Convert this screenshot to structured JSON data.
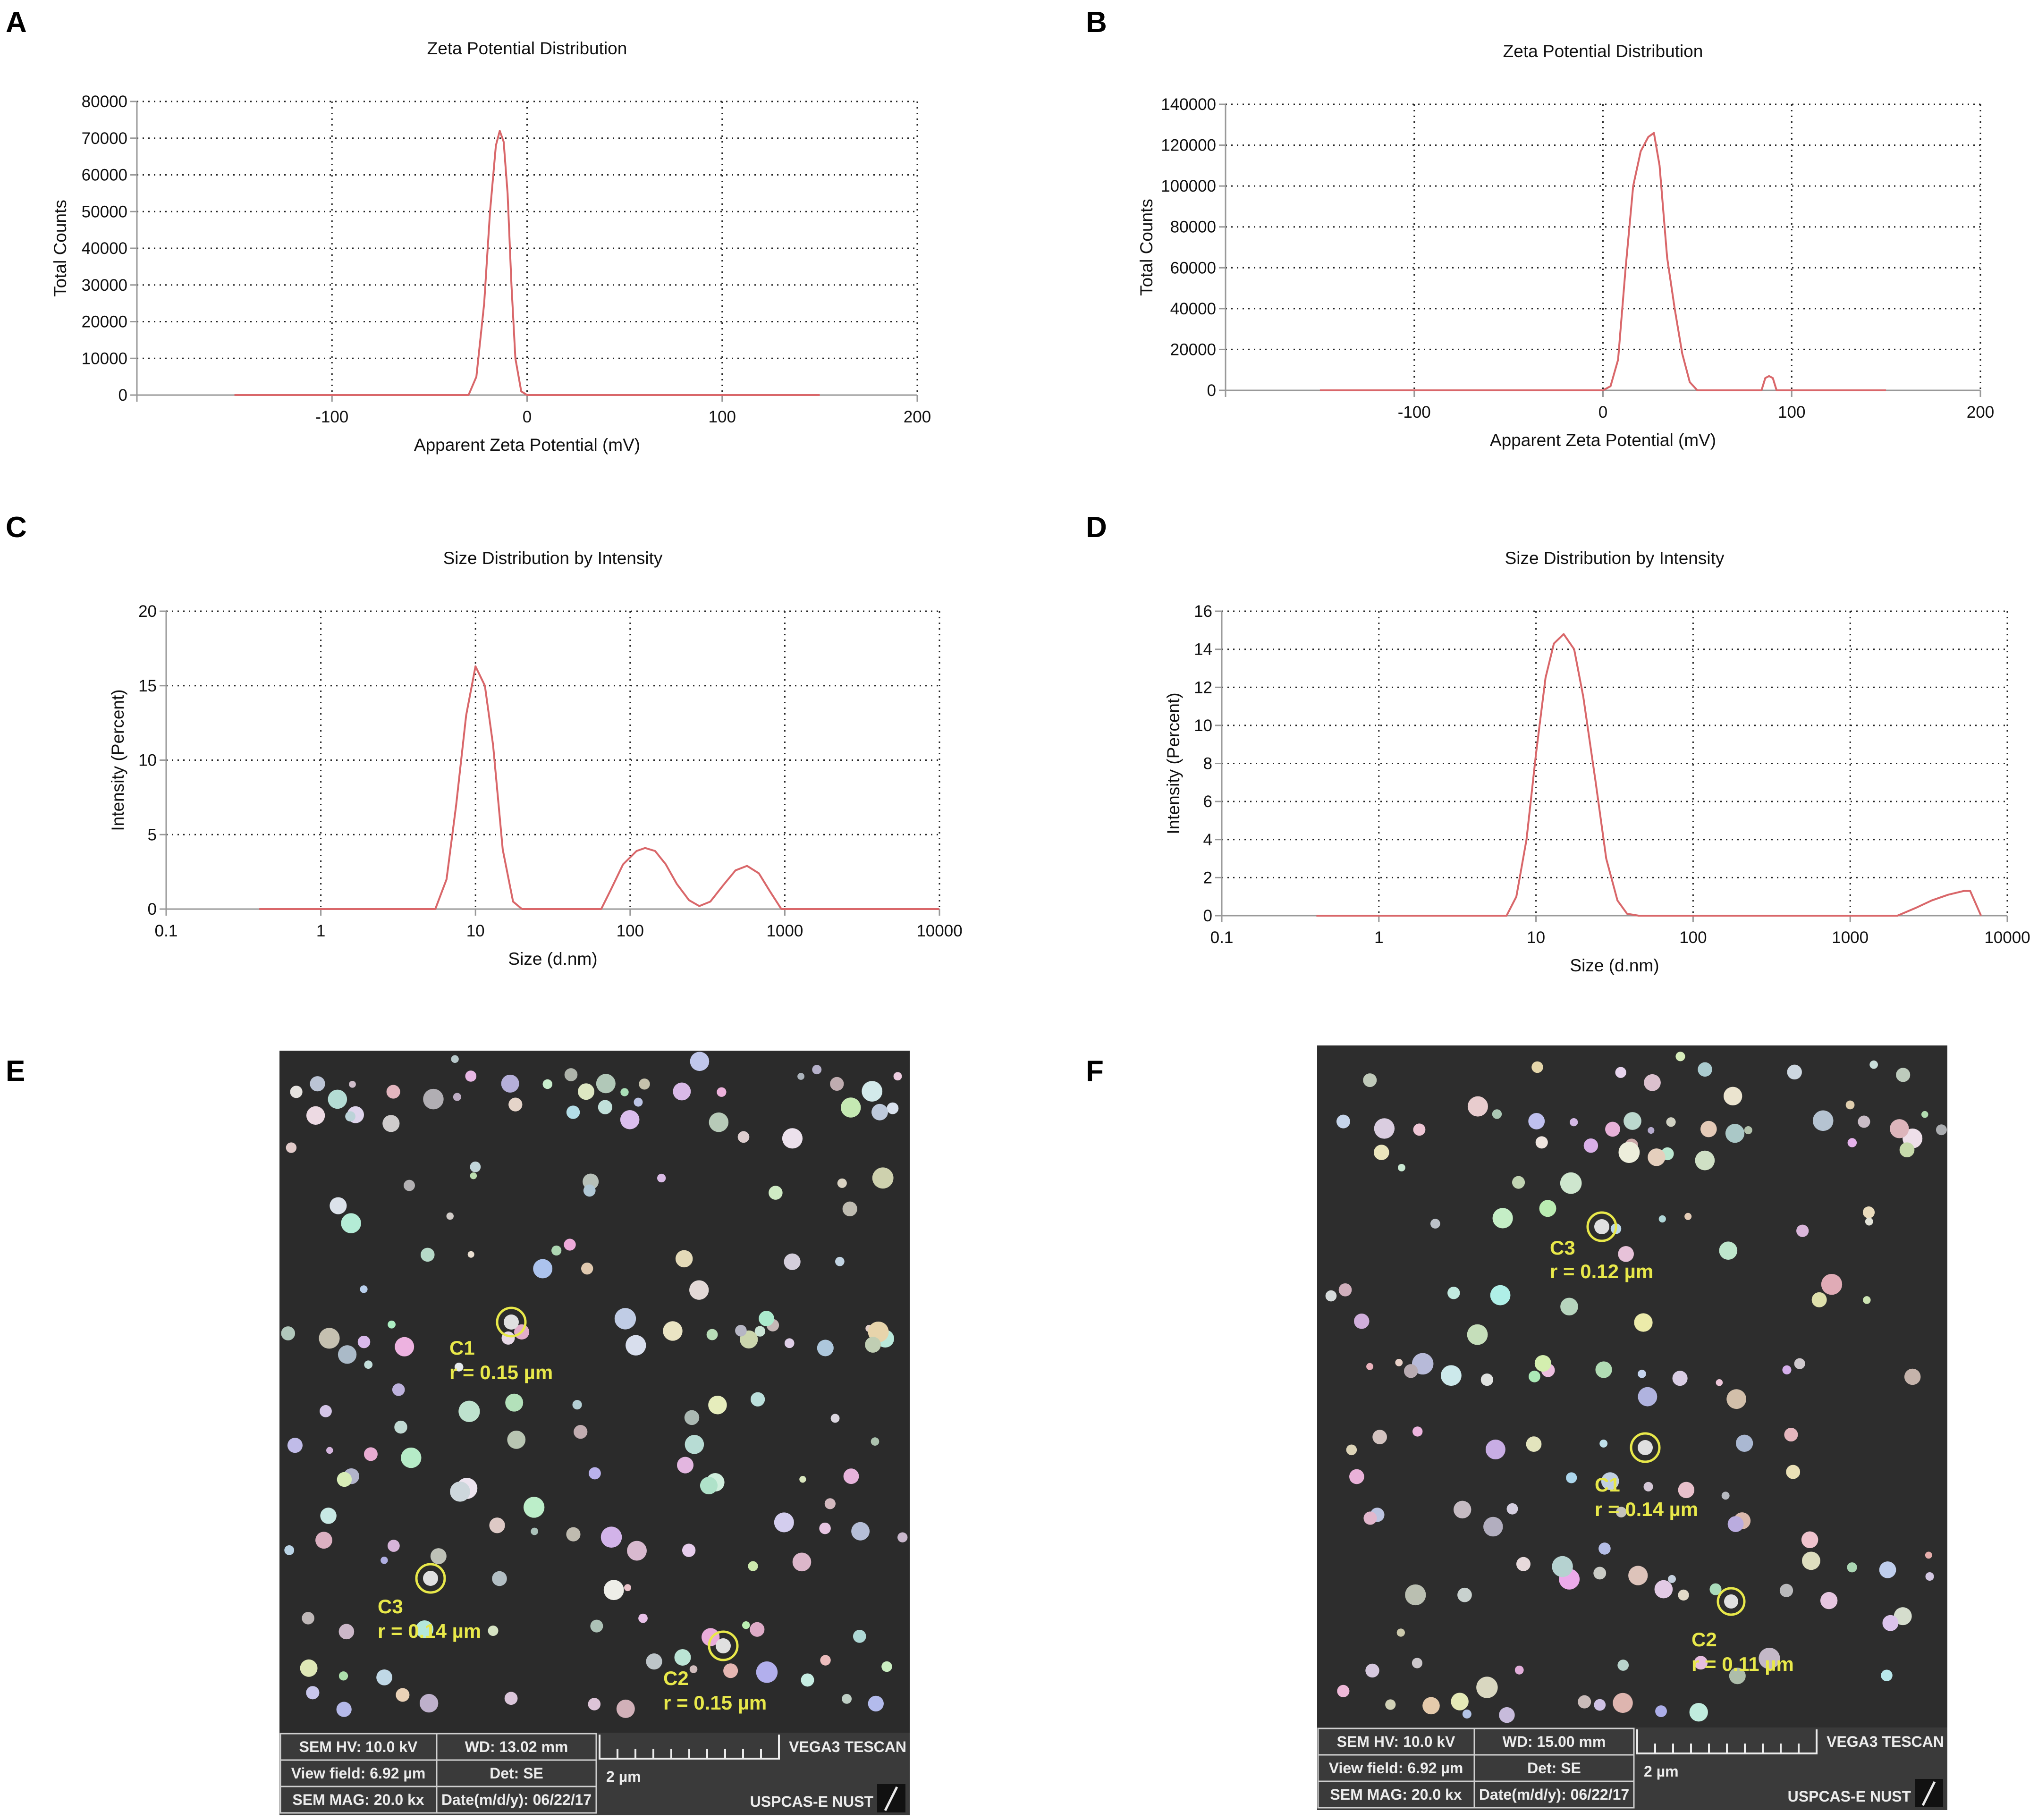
{
  "panels": {
    "A": {
      "letter": "A"
    },
    "B": {
      "letter": "B"
    },
    "C": {
      "letter": "C"
    },
    "D": {
      "letter": "D"
    },
    "E": {
      "letter": "E"
    },
    "F": {
      "letter": "F"
    }
  },
  "colors": {
    "series": "#d9676a",
    "grid": "#222222",
    "axis": "#999999",
    "sem_bg": "#2b2b2b",
    "annotation": "#e8e84a"
  },
  "chart_data": [
    {
      "id": "A",
      "type": "line",
      "title": "Zeta Potential Distribution",
      "xlabel": "Apparent Zeta Potential (mV)",
      "ylabel": "Total Counts",
      "xlim": [
        -200,
        200
      ],
      "ylim": [
        0,
        80000
      ],
      "xticks": [
        -100,
        0,
        100,
        200
      ],
      "xtick_labels": [
        "-100",
        "0",
        "100",
        "200"
      ],
      "yticks": [
        0,
        10000,
        20000,
        30000,
        40000,
        50000,
        60000,
        70000,
        80000
      ],
      "ytick_labels": [
        "0",
        "10000",
        "20000",
        "30000",
        "40000",
        "50000",
        "60000",
        "70000",
        "80000"
      ],
      "grid": true,
      "x_scale": "linear",
      "series": [
        {
          "x": [
            -150,
            -30,
            -26,
            -22,
            -19,
            -16,
            -14,
            -12,
            -10,
            -8,
            -6,
            -3,
            0,
            150
          ],
          "y": [
            0,
            0,
            5000,
            25000,
            50000,
            68000,
            72000,
            69000,
            55000,
            30000,
            10000,
            1000,
            0,
            0
          ]
        }
      ]
    },
    {
      "id": "B",
      "type": "line",
      "title": "Zeta Potential Distribution",
      "xlabel": "Apparent Zeta Potential (mV)",
      "ylabel": "Total Counts",
      "xlim": [
        -200,
        200
      ],
      "ylim": [
        0,
        140000
      ],
      "xticks": [
        -100,
        0,
        100,
        200
      ],
      "xtick_labels": [
        "-100",
        "0",
        "100",
        "200"
      ],
      "yticks": [
        0,
        20000,
        40000,
        60000,
        80000,
        100000,
        120000,
        140000
      ],
      "ytick_labels": [
        "0",
        "20000",
        "40000",
        "60000",
        "80000",
        "100000",
        "120000",
        "140000"
      ],
      "grid": true,
      "x_scale": "linear",
      "series": [
        {
          "x": [
            -150,
            0,
            4,
            8,
            12,
            16,
            20,
            24,
            27,
            30,
            34,
            38,
            42,
            46,
            50,
            84,
            86,
            88,
            90,
            92,
            150
          ],
          "y": [
            0,
            0,
            2000,
            15000,
            60000,
            100000,
            117000,
            124000,
            126000,
            110000,
            65000,
            40000,
            18000,
            4000,
            0,
            0,
            6000,
            7000,
            6000,
            0,
            0
          ]
        }
      ]
    },
    {
      "id": "C",
      "type": "line",
      "title": "Size Distribution by Intensity",
      "xlabel": "Size (d.nm)",
      "ylabel": "Intensity (Percent)",
      "xlim": [
        0.1,
        10000
      ],
      "ylim": [
        0,
        20
      ],
      "x_scale": "log",
      "xticks": [
        0.1,
        1,
        10,
        100,
        1000,
        10000
      ],
      "xtick_labels": [
        "0.1",
        "1",
        "10",
        "100",
        "1000",
        "10000"
      ],
      "yticks": [
        0,
        5,
        10,
        15,
        20
      ],
      "ytick_labels": [
        "0",
        "5",
        "10",
        "15",
        "20"
      ],
      "grid": true,
      "series": [
        {
          "x": [
            0.4,
            5.5,
            6.5,
            7.5,
            8.7,
            10,
            11.5,
            13,
            15,
            17.5,
            20,
            65,
            75,
            90,
            110,
            125,
            145,
            170,
            200,
            240,
            280,
            330,
            400,
            480,
            570,
            680,
            800,
            950,
            10000
          ],
          "y": [
            0,
            0,
            2,
            7,
            13,
            16.3,
            15,
            11,
            4,
            0.5,
            0,
            0,
            1.3,
            3,
            3.9,
            4.1,
            3.9,
            3,
            1.7,
            0.6,
            0.2,
            0.5,
            1.6,
            2.6,
            2.9,
            2.4,
            1.2,
            0,
            0
          ]
        }
      ]
    },
    {
      "id": "D",
      "type": "line",
      "title": "Size Distribution by Intensity",
      "xlabel": "Size (d.nm)",
      "ylabel": "Intensity (Percent)",
      "xlim": [
        0.1,
        10000
      ],
      "ylim": [
        0,
        16
      ],
      "x_scale": "log",
      "xticks": [
        0.1,
        1,
        10,
        100,
        1000,
        10000
      ],
      "xtick_labels": [
        "0.1",
        "1",
        "10",
        "100",
        "1000",
        "10000"
      ],
      "yticks": [
        0,
        2,
        4,
        6,
        8,
        10,
        12,
        14,
        16
      ],
      "ytick_labels": [
        "0",
        "2",
        "4",
        "6",
        "8",
        "10",
        "12",
        "14",
        "16"
      ],
      "grid": true,
      "series": [
        {
          "x": [
            0.4,
            6.5,
            7.5,
            8.7,
            10,
            11.5,
            13,
            15,
            17.5,
            20,
            24,
            28,
            33,
            38,
            45,
            2000,
            2600,
            3300,
            4200,
            5300,
            5800,
            6800
          ],
          "y": [
            0,
            0,
            1,
            4,
            8.5,
            12.5,
            14.3,
            14.8,
            14,
            11.5,
            7,
            3,
            0.8,
            0.1,
            0,
            0,
            0.4,
            0.8,
            1.1,
            1.3,
            1.3,
            0
          ]
        }
      ]
    }
  ],
  "sem": {
    "E": {
      "annotations": [
        {
          "label": "C1",
          "radius": "r = 0.15 µm"
        },
        {
          "label": "C3",
          "radius": "r = 0.14 µm"
        },
        {
          "label": "C2",
          "radius": "r = 0.15 µm"
        }
      ],
      "info": {
        "hv": "SEM HV: 10.0 kV",
        "wd": "WD: 13.02 mm",
        "brand": "VEGA3 TESCAN",
        "view_field": "View field: 6.92 µm",
        "det": "Det: SE",
        "scale": "2 µm",
        "mag": "SEM MAG: 20.0 kx",
        "date": "Date(m/d/y): 06/22/17",
        "org": "USPCAS-E NUST"
      }
    },
    "F": {
      "annotations": [
        {
          "label": "C3",
          "radius": "r = 0.12 µm"
        },
        {
          "label": "C1",
          "radius": "r = 0.14 µm"
        },
        {
          "label": "C2",
          "radius": "r = 0.11 µm"
        }
      ],
      "info": {
        "hv": "SEM HV: 10.0 kV",
        "wd": "WD: 15.00 mm",
        "brand": "VEGA3 TESCAN",
        "view_field": "View field: 6.92 µm",
        "det": "Det: SE",
        "scale": "2 µm",
        "mag": "SEM MAG: 20.0 kx",
        "date": "Date(m/d/y): 06/22/17",
        "org": "USPCAS-E NUST"
      }
    }
  }
}
